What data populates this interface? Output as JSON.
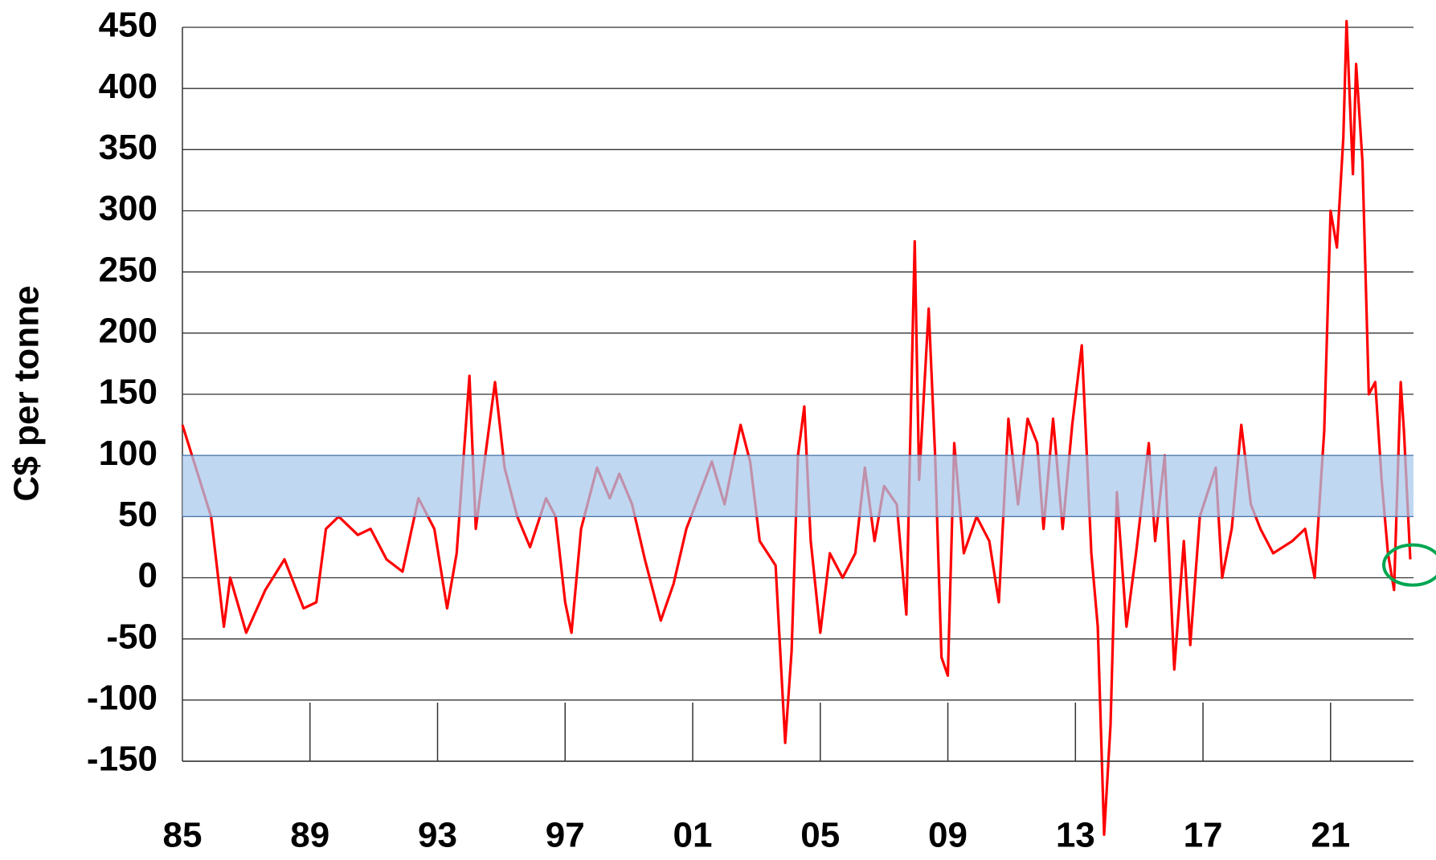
{
  "chart_data": {
    "type": "line",
    "y_label": "C$ per tonne",
    "x": [
      1985.0,
      1985.9,
      1986.3,
      1986.5,
      1987.0,
      1987.6,
      1988.2,
      1988.8,
      1989.2,
      1989.5,
      1989.9,
      1990.5,
      1990.9,
      1991.4,
      1991.9,
      1992.4,
      1992.9,
      1993.3,
      1993.6,
      1994.0,
      1994.2,
      1994.5,
      1994.8,
      1995.1,
      1995.5,
      1995.9,
      1996.4,
      1996.7,
      1997.0,
      1997.2,
      1997.5,
      1998.0,
      1998.4,
      1998.7,
      1999.1,
      1999.5,
      2000.0,
      2000.4,
      2000.8,
      2001.6,
      2002.0,
      2002.5,
      2002.8,
      2003.1,
      2003.6,
      2003.9,
      2004.1,
      2004.3,
      2004.5,
      2004.7,
      2005.0,
      2005.3,
      2005.7,
      2006.1,
      2006.4,
      2006.7,
      2007.0,
      2007.4,
      2007.7,
      2007.96,
      2008.1,
      2008.4,
      2008.6,
      2008.8,
      2009.0,
      2009.2,
      2009.5,
      2009.9,
      2010.3,
      2010.6,
      2010.9,
      2011.2,
      2011.5,
      2011.8,
      2012.0,
      2012.3,
      2012.6,
      2012.9,
      2013.2,
      2013.5,
      2013.7,
      2013.9,
      2014.1,
      2014.3,
      2014.6,
      2014.9,
      2015.3,
      2015.5,
      2015.8,
      2016.1,
      2016.4,
      2016.6,
      2016.9,
      2017.4,
      2017.6,
      2017.9,
      2018.2,
      2018.5,
      2018.8,
      2019.2,
      2019.8,
      2020.2,
      2020.5,
      2020.8,
      2021.0,
      2021.2,
      2021.4,
      2021.5,
      2021.7,
      2021.8,
      2022.0,
      2022.2,
      2022.4,
      2022.6,
      2022.8,
      2022.99,
      2023.2,
      2023.3,
      2023.5
    ],
    "values": [
      125,
      50,
      -40,
      0,
      -45,
      -10,
      15,
      -25,
      -20,
      40,
      50,
      35,
      40,
      15,
      5,
      65,
      40,
      -25,
      20,
      165,
      40,
      100,
      160,
      90,
      50,
      25,
      65,
      50,
      -20,
      -45,
      40,
      90,
      65,
      85,
      60,
      15,
      -35,
      -5,
      40,
      95,
      60,
      125,
      95,
      30,
      10,
      -135,
      -60,
      100,
      140,
      30,
      -45,
      20,
      0,
      20,
      90,
      30,
      75,
      60,
      -30,
      275,
      80,
      220,
      100,
      -65,
      -80,
      110,
      20,
      50,
      30,
      -20,
      130,
      60,
      130,
      110,
      40,
      130,
      40,
      125,
      190,
      20,
      -40,
      -210,
      -120,
      70,
      -40,
      20,
      110,
      30,
      100,
      -75,
      30,
      -55,
      50,
      90,
      0,
      40,
      125,
      60,
      40,
      20,
      30,
      40,
      0,
      120,
      300,
      270,
      360,
      455,
      330,
      420,
      340,
      150,
      160,
      80,
      20,
      -10,
      160,
      120,
      15
    ],
    "color": "#ff0000",
    "band": [
      50,
      100
    ],
    "band_color": "#a8c8ec",
    "xlim": [
      1985,
      2023.6
    ],
    "xticks": [
      {
        "value": 1985,
        "label": "85"
      },
      {
        "value": 1989,
        "label": "89"
      },
      {
        "value": 1993,
        "label": "93"
      },
      {
        "value": 1997,
        "label": "97"
      },
      {
        "value": 2001,
        "label": "01"
      },
      {
        "value": 2005,
        "label": "05"
      },
      {
        "value": 2009,
        "label": "09"
      },
      {
        "value": 2013,
        "label": "13"
      },
      {
        "value": 2017,
        "label": "17"
      },
      {
        "value": 2021,
        "label": "21"
      }
    ],
    "ylim": [
      -150,
      450
    ],
    "yticks": [
      -150,
      -100,
      -50,
      0,
      50,
      100,
      150,
      200,
      250,
      300,
      350,
      400,
      450
    ],
    "grid": true
  }
}
